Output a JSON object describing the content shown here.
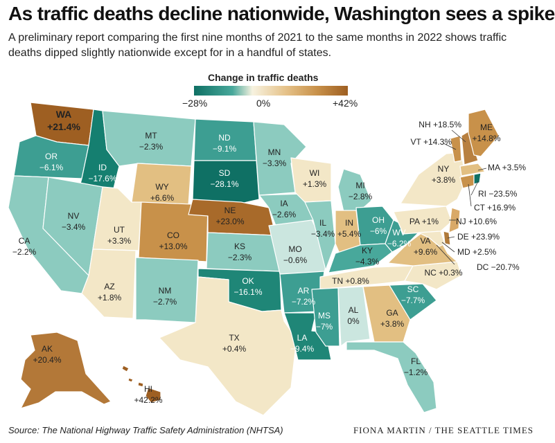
{
  "title": "As traffic deaths decline nationwide, Washington sees a spike",
  "subtitle": "A preliminary report comparing the first nine months of 2021 to the same months in 2022 shows traffic deaths dipped slightly nationwide except for in a handful of states.",
  "legend": {
    "title": "Change in traffic deaths",
    "min": "−28%",
    "mid": "0%",
    "max": "+42%"
  },
  "colors": {
    "dark_teal": "#0f7064",
    "teal": "#3d9e92",
    "light_teal": "#8ccbbf",
    "pale_teal": "#cbe6df",
    "cream": "#f3e7c7",
    "tan": "#e2bf82",
    "brown": "#c08948",
    "dark_brown": "#9e5f22"
  },
  "states": {
    "WA": {
      "abbr": "WA",
      "value": "+21.4%"
    },
    "OR": {
      "abbr": "OR",
      "value": "−6.1%"
    },
    "CA": {
      "abbr": "CA",
      "value": "−2.2%"
    },
    "ID": {
      "abbr": "ID",
      "value": "−17.6%"
    },
    "NV": {
      "abbr": "NV",
      "value": "−3.4%"
    },
    "MT": {
      "abbr": "MT",
      "value": "−2.3%"
    },
    "WY": {
      "abbr": "WY",
      "value": "+6.6%"
    },
    "UT": {
      "abbr": "UT",
      "value": "+3.3%"
    },
    "AZ": {
      "abbr": "AZ",
      "value": "+1.8%"
    },
    "CO": {
      "abbr": "CO",
      "value": "+13.0%"
    },
    "NM": {
      "abbr": "NM",
      "value": "−2.7%"
    },
    "ND": {
      "abbr": "ND",
      "value": "−9.1%"
    },
    "SD": {
      "abbr": "SD",
      "value": "−28.1%"
    },
    "NE": {
      "abbr": "NE",
      "value": "+23.0%"
    },
    "KS": {
      "abbr": "KS",
      "value": "−2.3%"
    },
    "OK": {
      "abbr": "OK",
      "value": "−16.1%"
    },
    "TX": {
      "abbr": "TX",
      "value": "+0.4%"
    },
    "MN": {
      "abbr": "MN",
      "value": "−3.3%"
    },
    "IA": {
      "abbr": "IA",
      "value": "−2.6%"
    },
    "MO": {
      "abbr": "MO",
      "value": "−0.6%"
    },
    "AR": {
      "abbr": "AR",
      "value": "−7.2%"
    },
    "LA": {
      "abbr": "LA",
      "value": "−9.4%"
    },
    "WI": {
      "abbr": "WI",
      "value": "+1.3%"
    },
    "IL": {
      "abbr": "IL",
      "value": "−3.4%"
    },
    "MI": {
      "abbr": "MI",
      "value": "−2.8%"
    },
    "IN": {
      "abbr": "IN",
      "value": "+5.4%"
    },
    "OH": {
      "abbr": "OH",
      "value": "−6%"
    },
    "KY": {
      "abbr": "KY",
      "value": "−4.3%"
    },
    "TN": {
      "abbr": "TN",
      "value": "+0.8%"
    },
    "MS": {
      "abbr": "MS",
      "value": "−7%"
    },
    "AL": {
      "abbr": "AL",
      "value": "0%"
    },
    "GA": {
      "abbr": "GA",
      "value": "+3.8%"
    },
    "FL": {
      "abbr": "FL",
      "value": "−1.2%"
    },
    "SC": {
      "abbr": "SC",
      "value": "−7.7%"
    },
    "NC": {
      "abbr": "NC",
      "value": "+0.3%"
    },
    "VA": {
      "abbr": "VA",
      "value": "+9.6%"
    },
    "WV": {
      "abbr": "WV",
      "value": "−6.2%"
    },
    "PA": {
      "abbr": "PA",
      "value": "+1%"
    },
    "NY": {
      "abbr": "NY",
      "value": "+3.8%"
    },
    "ME": {
      "abbr": "ME",
      "value": "+14.8%"
    },
    "AK": {
      "abbr": "AK",
      "value": "+20.4%"
    },
    "HI": {
      "abbr": "HI",
      "value": "+42.2%"
    }
  },
  "callouts": {
    "NH": "NH +18.5%",
    "VT": "VT +14.3%",
    "MA": "MA +3.5%",
    "RI": "RI −23.5%",
    "CT": "CT +16.9%",
    "NJ": "NJ +10.6%",
    "DE": "DE +23.9%",
    "MD": "MD +2.5%",
    "DC": "DC −20.7%"
  },
  "source": "Source: The National Highway Traffic Safety Administration (NHTSA)",
  "credit": "FIONA MARTIN / THE SEATTLE TIMES"
}
